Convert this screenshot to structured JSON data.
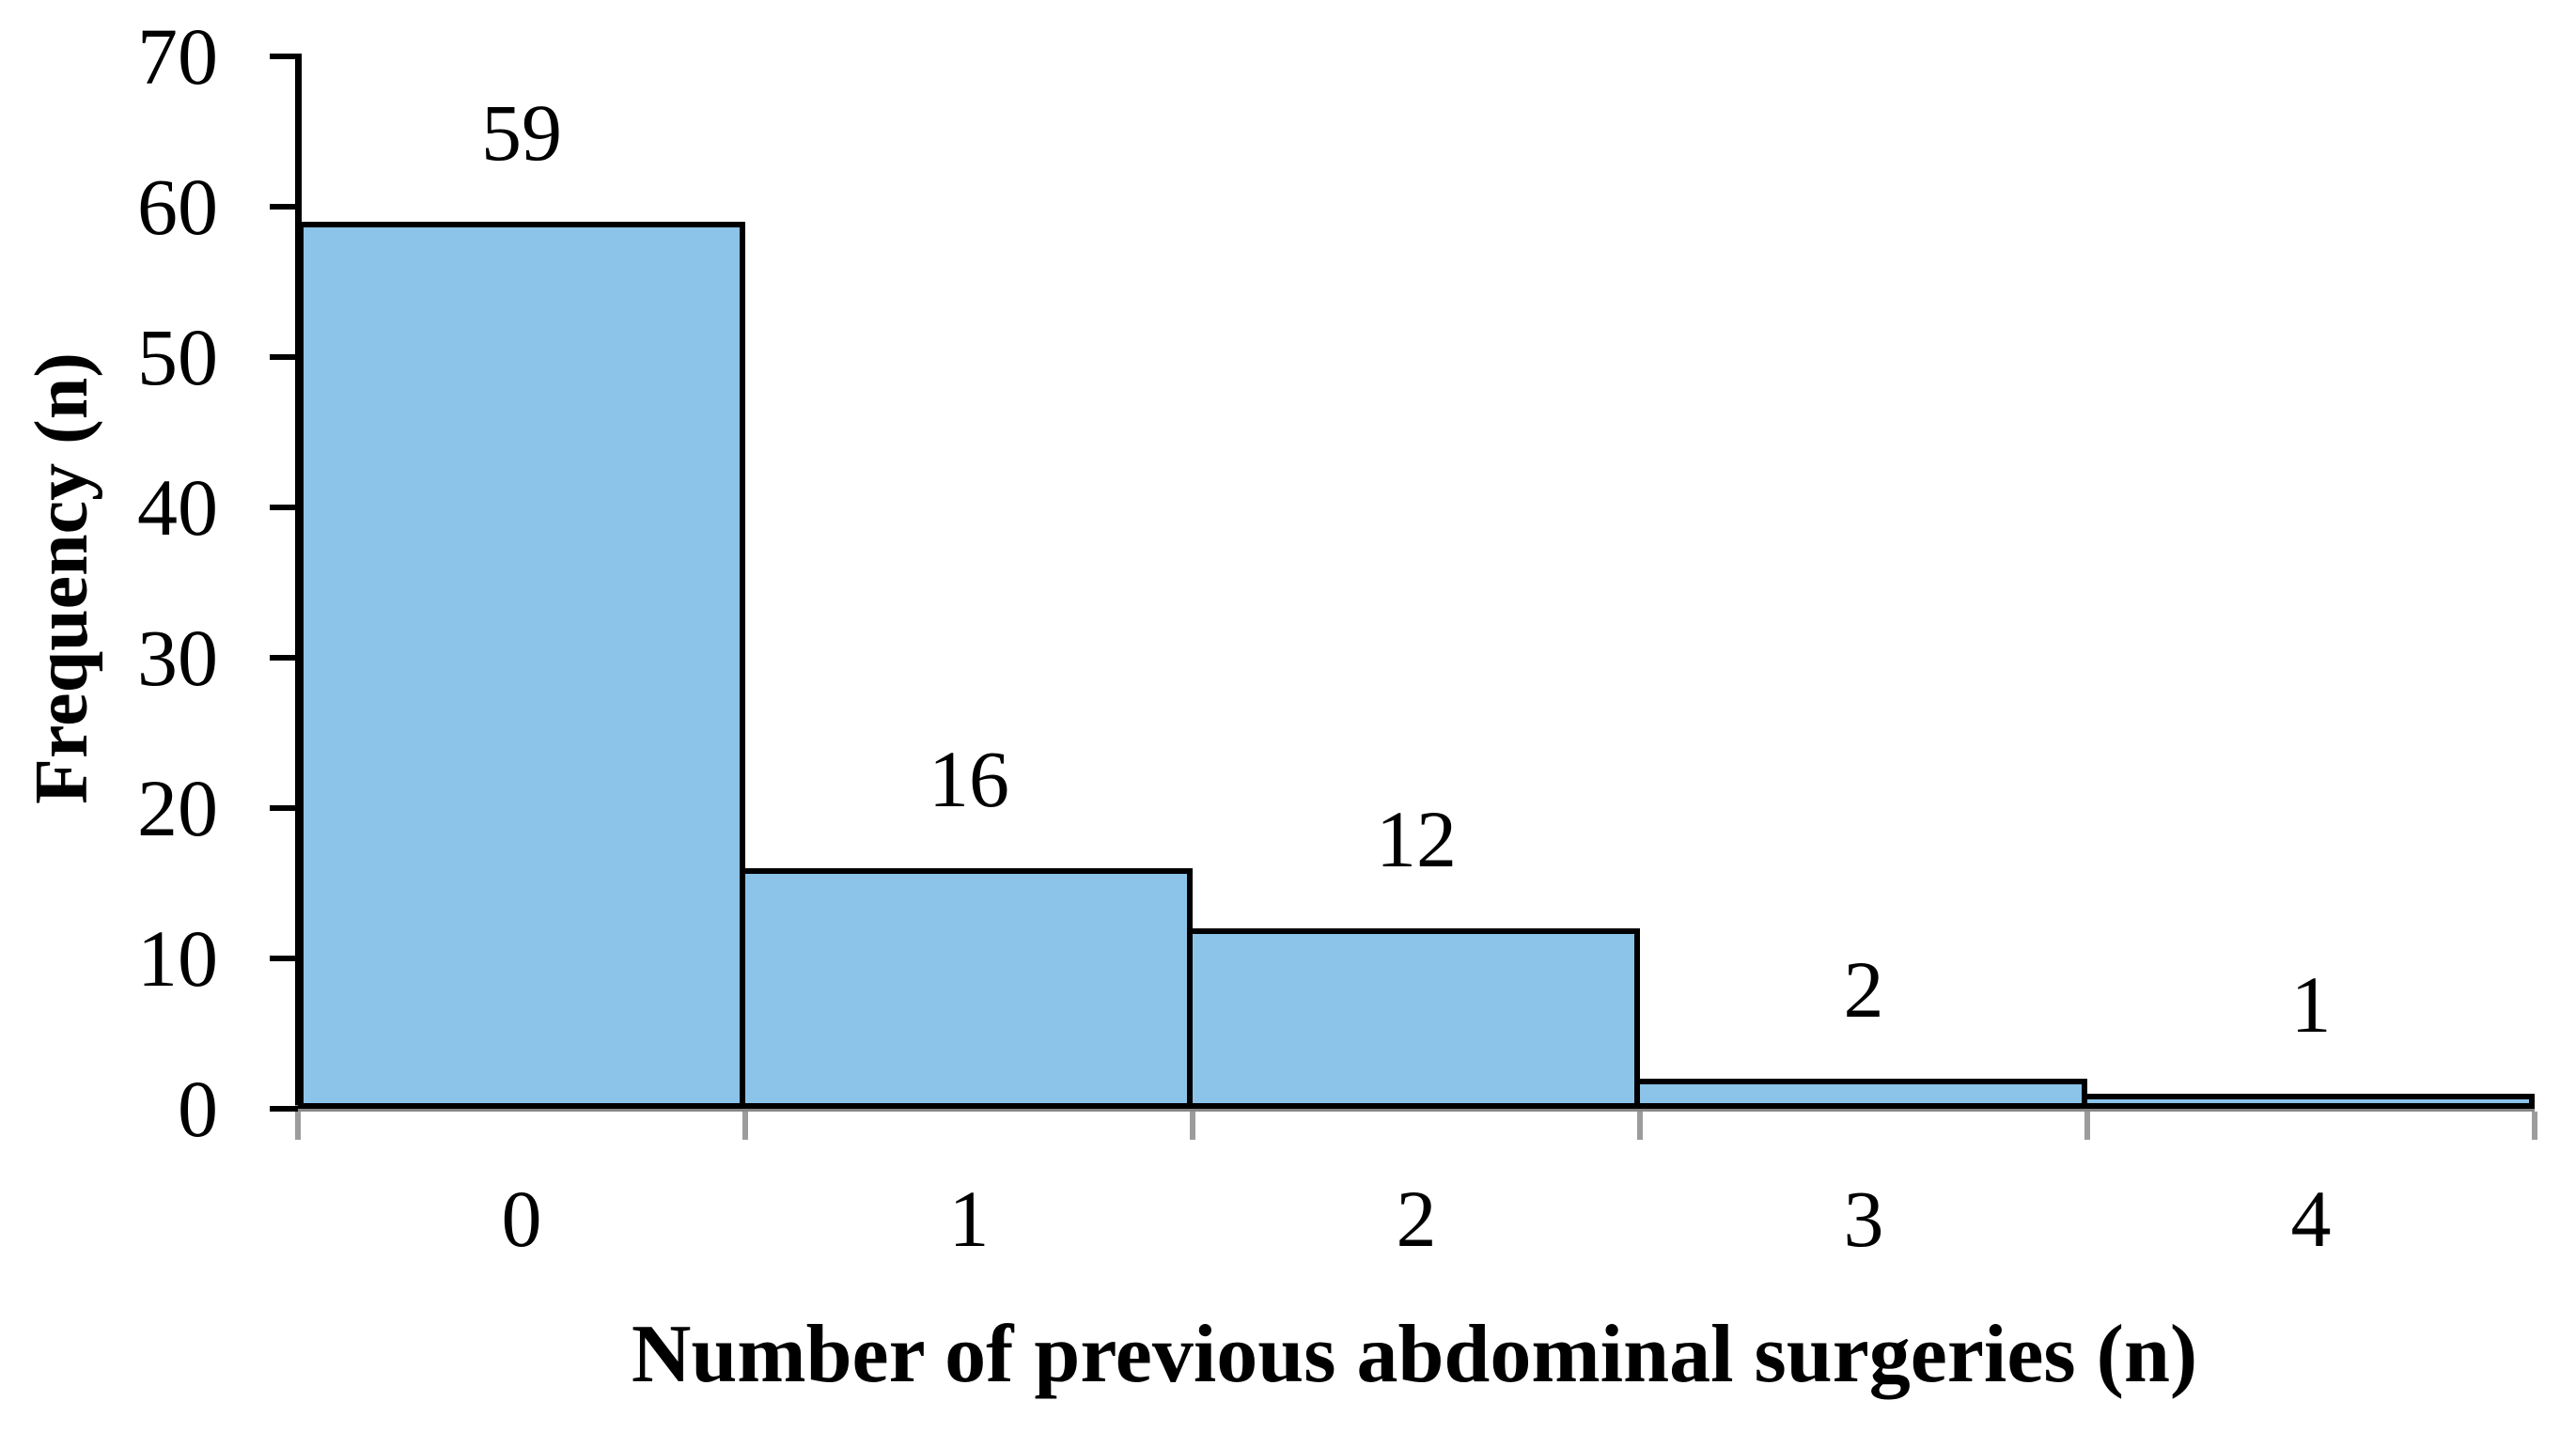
{
  "figure": {
    "background_color": "#ffffff"
  },
  "chart_data": {
    "type": "bar",
    "title": "",
    "xlabel": "Number of previous abdominal surgeries (n)",
    "ylabel": "Frequency (n)",
    "categories": [
      "0",
      "1",
      "2",
      "3",
      "4"
    ],
    "values": [
      59,
      16,
      12,
      2,
      1
    ],
    "data_labels": [
      "59",
      "16",
      "12",
      "2",
      "1"
    ],
    "ylim": [
      0,
      70
    ],
    "yticks": [
      0,
      10,
      20,
      30,
      40,
      50,
      60,
      70
    ],
    "ytick_labels": [
      "0",
      "10",
      "20",
      "30",
      "40",
      "50",
      "60",
      "70"
    ],
    "grid": false,
    "legend": "none",
    "colors": {
      "bar_fill": "#8cc3e8",
      "bar_border": "#000000",
      "y_axis": "#000000",
      "x_axis": "#878787",
      "x_tick": "#9c9c9c",
      "text": "#000000"
    }
  }
}
